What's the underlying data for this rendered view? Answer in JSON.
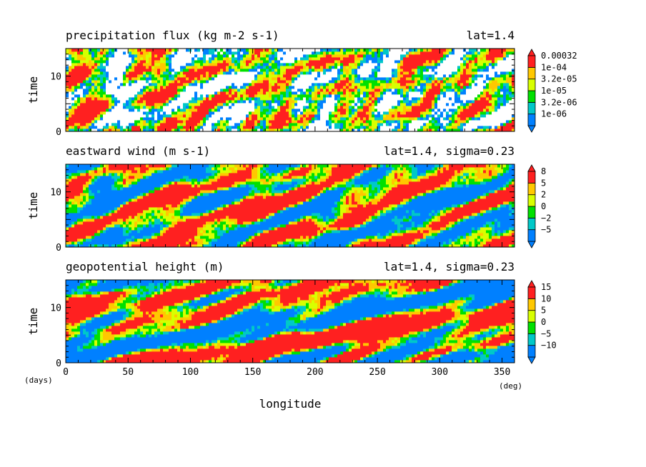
{
  "figure": {
    "xlabel": "longitude",
    "x_unit": "(deg)",
    "y_unit": "(days)",
    "colors": [
      "#0080ff",
      "#00c8c8",
      "#00e000",
      "#d8ff00",
      "#ffc800",
      "#ff2020"
    ]
  },
  "chart_data": [
    {
      "type": "heatmap",
      "title": "precipitation flux (kg m-2 s-1)",
      "subtitle": "lat=1.4",
      "ylabel": "time",
      "xlim": [
        0,
        360
      ],
      "ylim": [
        0,
        15
      ],
      "xticks": [
        "0",
        "50",
        "100",
        "150",
        "200",
        "250",
        "300",
        "350"
      ],
      "xtick_values": [
        0,
        50,
        100,
        150,
        200,
        250,
        300,
        350
      ],
      "yticks": [
        "0",
        "10"
      ],
      "ytick_values": [
        0,
        10
      ],
      "colorbar_labels": [
        "1e-06",
        "3.2e-06",
        "1e-05",
        "3.2e-05",
        "1e-04",
        "0.00032"
      ],
      "below_lowest": "white",
      "propagation": "eastward bands, small scale"
    },
    {
      "type": "heatmap",
      "title": "eastward wind (m s-1)",
      "subtitle": "lat=1.4, sigma=0.23",
      "ylabel": "time",
      "xlim": [
        0,
        360
      ],
      "ylim": [
        0,
        15
      ],
      "xticks": [
        "0",
        "50",
        "100",
        "150",
        "200",
        "250",
        "300",
        "350"
      ],
      "xtick_values": [
        0,
        50,
        100,
        150,
        200,
        250,
        300,
        350
      ],
      "yticks": [
        "0",
        "10"
      ],
      "ytick_values": [
        0,
        10
      ],
      "colorbar_labels": [
        "−5",
        "−2",
        "0",
        "2",
        "5",
        "8"
      ],
      "propagation": "large blobs with eastward streaks"
    },
    {
      "type": "heatmap",
      "title": "geopotential height (m)",
      "subtitle": "lat=1.4, sigma=0.23",
      "ylabel": "time",
      "xlim": [
        0,
        360
      ],
      "ylim": [
        0,
        15
      ],
      "xticks": [
        "0",
        "50",
        "100",
        "150",
        "200",
        "250",
        "300",
        "350"
      ],
      "xtick_values": [
        0,
        50,
        100,
        150,
        200,
        250,
        300,
        350
      ],
      "yticks": [
        "0",
        "10"
      ],
      "ytick_values": [
        0,
        10
      ],
      "colorbar_labels": [
        "−10",
        "−5",
        "0",
        "5",
        "10",
        "15"
      ],
      "propagation": "strong diagonal eastward-moving bands"
    }
  ]
}
